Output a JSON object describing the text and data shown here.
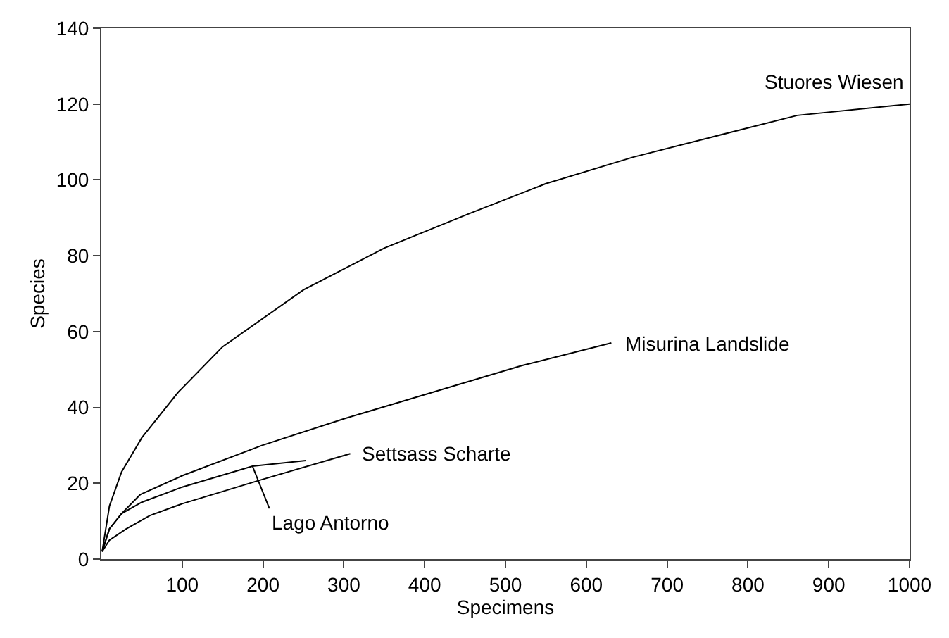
{
  "chart_data": {
    "type": "line",
    "xlabel": "Specimens",
    "ylabel": "Species",
    "xlim": [
      0,
      1000
    ],
    "ylim": [
      0,
      140
    ],
    "xticks": [
      100,
      200,
      300,
      400,
      500,
      600,
      700,
      800,
      900,
      1000
    ],
    "yticks": [
      0,
      20,
      40,
      60,
      80,
      100,
      120,
      140
    ],
    "marker": "none",
    "line_style": "solid",
    "series": [
      {
        "name": "Stuores Wiesen",
        "color": "#000000",
        "x": [
          1,
          10,
          25,
          50,
          95,
          150,
          250,
          350,
          454,
          550,
          658,
          750,
          861,
          1000
        ],
        "values": [
          2,
          14,
          23,
          32,
          44,
          56,
          71,
          82,
          91,
          99,
          106,
          111,
          117,
          120
        ]
      },
      {
        "name": "Misurina Landslide",
        "color": "#000000",
        "x": [
          1,
          10,
          25,
          48,
          100,
          199,
          300,
          410,
          520,
          631
        ],
        "values": [
          2,
          8,
          12,
          17,
          22,
          30,
          37,
          44,
          51,
          57
        ]
      },
      {
        "name": "Settsass Scharte",
        "color": "#000000",
        "x": [
          1,
          10,
          31,
          60,
          100,
          199,
          308
        ],
        "values": [
          2,
          5,
          8,
          11.5,
          14.6,
          21,
          27.8
        ]
      },
      {
        "name": "Lago Antorno",
        "color": "#000000",
        "x": [
          1,
          10,
          25,
          50,
          100,
          187,
          253
        ],
        "values": [
          2,
          8,
          12,
          15,
          19,
          24.5,
          26
        ]
      }
    ]
  }
}
